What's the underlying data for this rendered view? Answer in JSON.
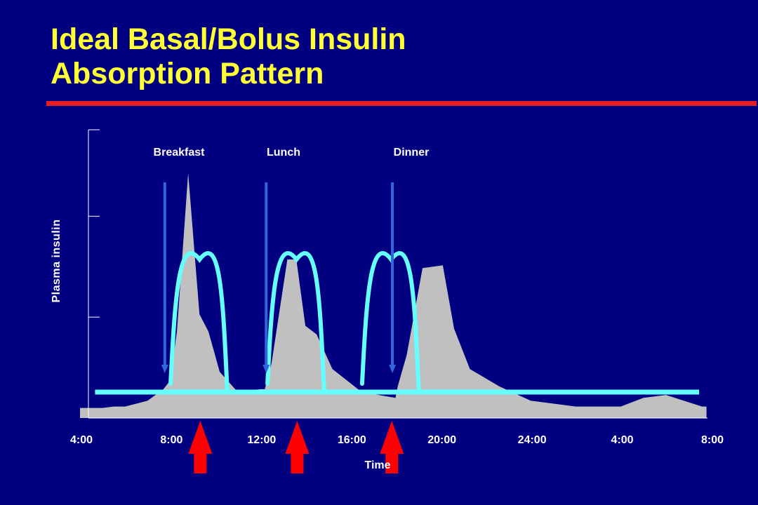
{
  "slide": {
    "title_line1": "Ideal Basal/Bolus Insulin",
    "title_line2": "Absorption Pattern",
    "title_color": "#FFFF33",
    "rule_color": "#E31E24",
    "background_color": "#000080"
  },
  "chart_data": {
    "type": "area",
    "xlabel": "Time",
    "ylabel": "Plasma insulin",
    "x_tick_labels": [
      "4:00",
      "8:00",
      "12:00",
      "16:00",
      "20:00",
      "24:00",
      "4:00",
      "8:00"
    ],
    "x_tick_hours": [
      4,
      8,
      12,
      16,
      20,
      24,
      28,
      32
    ],
    "xlim": [
      4,
      32
    ],
    "ylim": [
      0,
      100
    ],
    "y_tick_values": [
      0,
      35,
      70,
      100
    ],
    "grid": false,
    "meals": [
      {
        "label": "Breakfast",
        "arrow_hour": 7.7
      },
      {
        "label": "Lunch",
        "arrow_hour": 12.2
      },
      {
        "label": "Dinner",
        "arrow_hour": 17.8
      }
    ],
    "injection_arrow_hours": [
      9.4,
      13.7,
      17.9
    ],
    "series": [
      {
        "kind": "area",
        "color": "#C0C0C0",
        "x": [
          4,
          5,
          5.5,
          6,
          6.5,
          7,
          7.7,
          8,
          8.3,
          8.8,
          9.3,
          9.7,
          10.2,
          11,
          12,
          12.2,
          12.5,
          13.2,
          13.6,
          14.0,
          14.5,
          15.2,
          16.5,
          18.0,
          18.1,
          18.5,
          19.2,
          20.1,
          20.6,
          21.3,
          22.6,
          24.0,
          26.0,
          27.0,
          28.0,
          29.0,
          30.0,
          31.6,
          31.8
        ],
        "values": [
          3.5,
          3.5,
          4,
          4,
          5,
          6,
          10,
          13,
          30,
          85,
          36,
          30,
          16,
          9,
          10,
          10,
          19,
          55,
          55,
          32,
          29,
          17,
          9,
          7,
          11,
          22,
          52,
          53,
          31,
          17,
          11,
          6,
          4,
          4,
          4,
          7,
          8,
          4,
          4
        ]
      },
      {
        "kind": "line",
        "color": "#66FFFF",
        "x": [
          4.2,
          31.6
        ],
        "values": [
          9,
          9
        ]
      }
    ]
  }
}
